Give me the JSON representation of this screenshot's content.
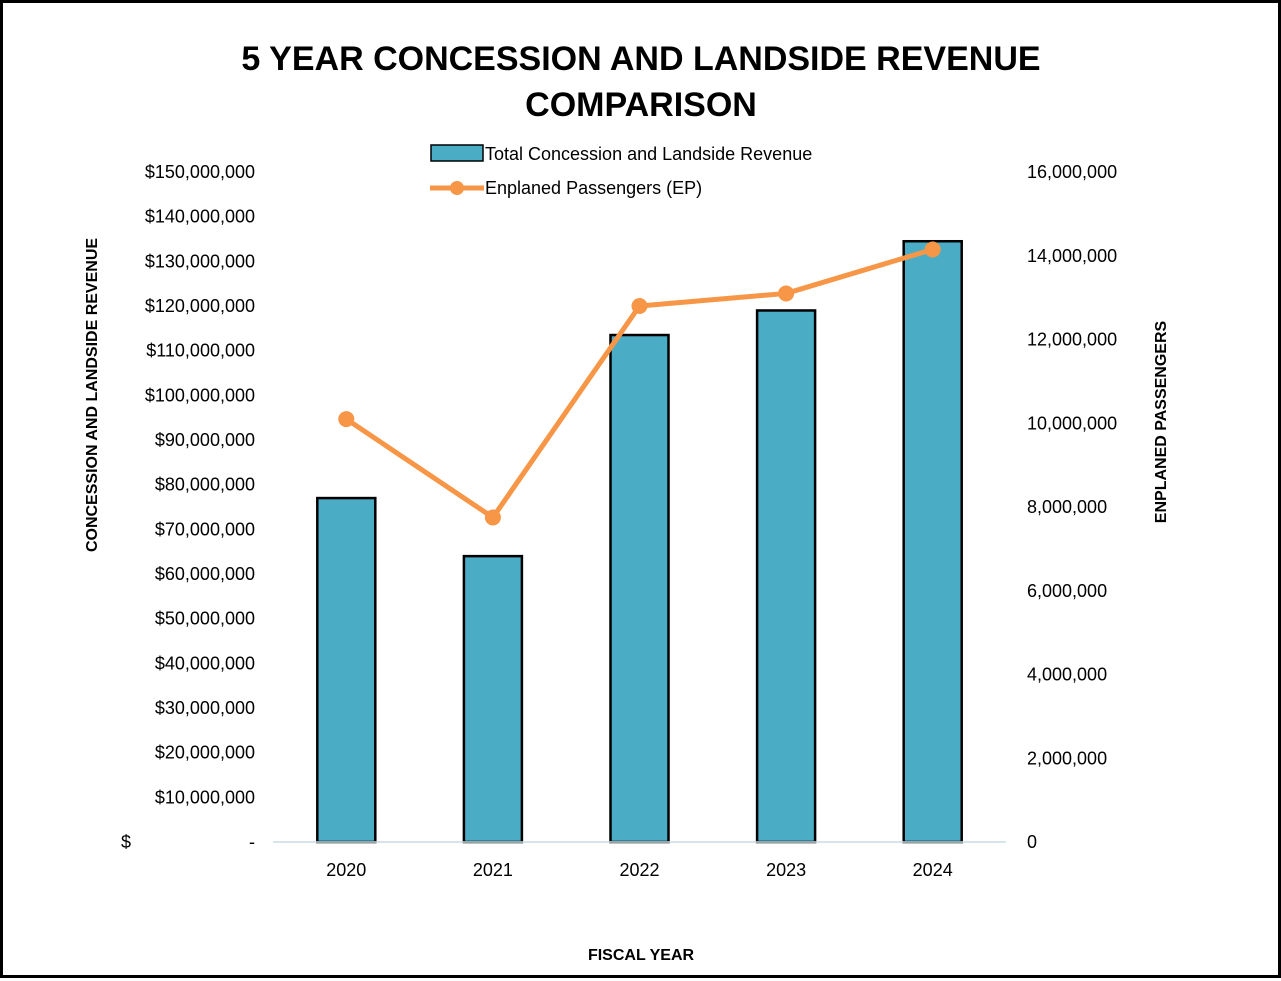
{
  "chart_data": {
    "type": "bar",
    "title_lines": [
      "5 YEAR CONCESSION AND LANDSIDE REVENUE",
      "COMPARISON"
    ],
    "xlabel": "FISCAL YEAR",
    "ylabel": "CONCESSION AND LANDSIDE REVENUE",
    "y2label": "ENPLANED PASSENGERS",
    "categories": [
      "2020",
      "2021",
      "2022",
      "2023",
      "2024"
    ],
    "ylim": [
      0,
      150000000
    ],
    "y2lim": [
      0,
      16000000
    ],
    "y_ticks": [
      "$-",
      "$10,000,000",
      "$20,000,000",
      "$30,000,000",
      "$40,000,000",
      "$50,000,000",
      "$60,000,000",
      "$70,000,000",
      "$80,000,000",
      "$90,000,000",
      "$100,000,000",
      "$110,000,000",
      "$120,000,000",
      "$130,000,000",
      "$140,000,000",
      "$150,000,000"
    ],
    "y2_ticks": [
      "0",
      "2,000,000",
      "4,000,000",
      "6,000,000",
      "8,000,000",
      "10,000,000",
      "12,000,000",
      "14,000,000",
      "16,000,000"
    ],
    "series": [
      {
        "name": "Total Concession and Landside Revenue",
        "type": "bar",
        "axis": "left",
        "color": "#4BACC6",
        "values": [
          77000000,
          64000000,
          113500000,
          119000000,
          134500000
        ]
      },
      {
        "name": "Enplaned Passengers  (EP)",
        "type": "line",
        "axis": "right",
        "color": "#F79646",
        "values": [
          10100000,
          7750000,
          12800000,
          13100000,
          14150000
        ]
      }
    ],
    "legend_position": "top-center",
    "grid": false
  }
}
